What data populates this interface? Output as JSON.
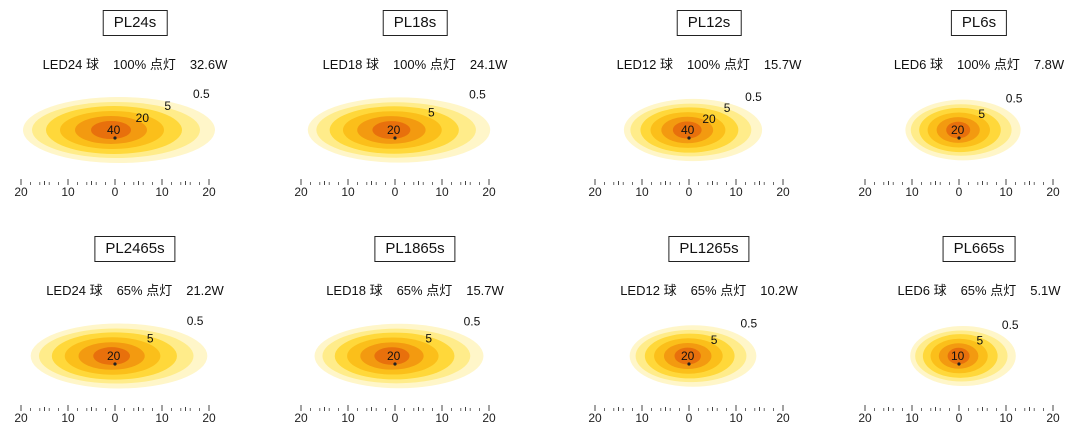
{
  "colors": {
    "levels": [
      "#fff6c9",
      "#ffec8a",
      "#ffd83a",
      "#fbbf1a",
      "#f39a10",
      "#e8700c"
    ],
    "center_dot": "#222222",
    "axis": "#444444"
  },
  "axis": {
    "ticks": [
      -20,
      -15,
      -10,
      -5,
      0,
      5,
      10,
      15,
      20
    ],
    "labels": [
      "20",
      "10",
      "0",
      "10",
      "20"
    ]
  },
  "panels": [
    {
      "title": "PL24s",
      "lamp": "LED24 球",
      "level": "100% 点灯",
      "watt": "32.6W",
      "spread": 1.0,
      "contour_labels": [
        "40",
        "20",
        "5",
        "0.5"
      ]
    },
    {
      "title": "PL18s",
      "lamp": "LED18 球",
      "level": "100% 点灯",
      "watt": "24.1W",
      "spread": 0.95,
      "contour_labels": [
        "20",
        "5",
        "0.5"
      ]
    },
    {
      "title": "PL12s",
      "lamp": "LED12 球",
      "level": "100% 点灯",
      "watt": "15.7W",
      "spread": 0.72,
      "contour_labels": [
        "40",
        "20",
        "5",
        "0.5"
      ]
    },
    {
      "title": "PL6s",
      "lamp": "LED6 球",
      "level": "100% 点灯",
      "watt": "7.8W",
      "spread": 0.6,
      "contour_labels": [
        "20",
        "5",
        "0.5"
      ]
    },
    {
      "title": "PL2465s",
      "lamp": "LED24 球",
      "level": "65% 点灯",
      "watt": "21.2W",
      "spread": 0.92,
      "contour_labels": [
        "20",
        "5",
        "0.5"
      ]
    },
    {
      "title": "PL1865s",
      "lamp": "LED18 球",
      "level": "65% 点灯",
      "watt": "15.7W",
      "spread": 0.88,
      "contour_labels": [
        "20",
        "5",
        "0.5"
      ]
    },
    {
      "title": "PL1265s",
      "lamp": "LED12 球",
      "level": "65% 点灯",
      "watt": "10.2W",
      "spread": 0.66,
      "contour_labels": [
        "20",
        "5",
        "0.5"
      ]
    },
    {
      "title": "PL665s",
      "lamp": "LED6 球",
      "level": "65% 点灯",
      "watt": "5.1W",
      "spread": 0.55,
      "contour_labels": [
        "10",
        "5",
        "0.5"
      ]
    }
  ]
}
